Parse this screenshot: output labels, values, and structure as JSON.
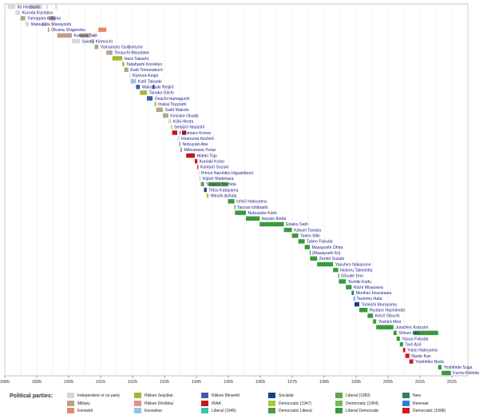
{
  "chart_data": {
    "type": "bar",
    "subtype": "timeline",
    "xlim": [
      1885,
      2030
    ],
    "x_ticks": [
      "1885",
      "1895",
      "1905",
      "1915",
      "1925",
      "1935",
      "1945",
      "1955",
      "1965",
      "1975",
      "1985",
      "1995",
      "2005",
      "2015",
      "2025"
    ],
    "grid": true,
    "series": [
      {
        "label": "Itō Hirobumi",
        "party": "independent",
        "terms": [
          [
            1885.9,
            1888.3
          ],
          [
            1892.6,
            1896.7
          ],
          [
            1898.0,
            1898.5
          ],
          [
            1900.8,
            1901.4
          ]
        ]
      },
      {
        "label": "Kuroda Kiyotaka",
        "party": "independent",
        "terms": [
          [
            1888.3,
            1889.8
          ]
        ]
      },
      {
        "label": "Yamagata Aritomo",
        "party": "military",
        "terms": [
          [
            1889.9,
            1891.4
          ],
          [
            1898.9,
            1900.8
          ]
        ]
      },
      {
        "label": "Matsukata Masayoshi",
        "party": "independent",
        "terms": [
          [
            1891.4,
            1892.6
          ],
          [
            1896.7,
            1898.0
          ]
        ]
      },
      {
        "label": "Ōkuma Shigenobu",
        "party": "kenseito",
        "terms": [
          [
            1898.5,
            1898.9
          ],
          [
            1914.3,
            1916.8
          ]
        ]
      },
      {
        "label": "Katsura Tarō",
        "party": "military",
        "terms": [
          [
            1901.4,
            1906.0
          ],
          [
            1908.5,
            1911.7
          ],
          [
            1912.9,
            1913.1
          ]
        ]
      },
      {
        "label": "Saionji Kinmochi",
        "party": "independent",
        "terms": [
          [
            1906.0,
            1908.5
          ],
          [
            1911.7,
            1912.9
          ]
        ]
      },
      {
        "label": "Yamamoto Gonnohyōe",
        "party": "military",
        "terms": [
          [
            1913.1,
            1914.3
          ],
          [
            1923.7,
            1924.0
          ]
        ]
      },
      {
        "label": "Terauchi Masatake",
        "party": "military",
        "terms": [
          [
            1916.8,
            1918.7
          ]
        ]
      },
      {
        "label": "Hara Takashi",
        "party": "seiyukai",
        "terms": [
          [
            1918.7,
            1921.8
          ]
        ]
      },
      {
        "label": "Takahashi Korekiyo",
        "party": "seiyukai",
        "terms": [
          [
            1921.8,
            1922.4
          ]
        ]
      },
      {
        "label": "Katō Tomosaburō",
        "party": "military",
        "terms": [
          [
            1922.4,
            1923.7
          ]
        ]
      },
      {
        "label": "Kiyoura Keigo",
        "party": "independent",
        "terms": [
          [
            1924.0,
            1924.4
          ]
        ]
      },
      {
        "label": "Katō Takaaki",
        "party": "kenseikai",
        "terms": [
          [
            1924.4,
            1926.1
          ]
        ]
      },
      {
        "label": "Wakatsuki Reijirō",
        "party": "minseito",
        "terms": [
          [
            1926.1,
            1927.3
          ],
          [
            1931.3,
            1931.9
          ]
        ]
      },
      {
        "label": "Tanaka Giichi",
        "party": "seiyukai",
        "terms": [
          [
            1927.3,
            1929.5
          ]
        ]
      },
      {
        "label": "Osachi Hamaguchi",
        "party": "minseito",
        "terms": [
          [
            1929.5,
            1931.3
          ]
        ]
      },
      {
        "label": "Inukai Tsuyoshi",
        "party": "seiyukai",
        "terms": [
          [
            1931.9,
            1932.4
          ]
        ]
      },
      {
        "label": "Saitō Makoto",
        "party": "military",
        "terms": [
          [
            1932.4,
            1934.5
          ]
        ]
      },
      {
        "label": "Keisuke Okada",
        "party": "military",
        "terms": [
          [
            1934.5,
            1936.2
          ]
        ]
      },
      {
        "label": "Kōki Hirota",
        "party": "independent",
        "terms": [
          [
            1936.2,
            1937.1
          ]
        ]
      },
      {
        "label": "Senjūrō Hayashi",
        "party": "military",
        "terms": [
          [
            1937.1,
            1937.4
          ]
        ]
      },
      {
        "label": "Fumimaro Konoe",
        "party": "irAA",
        "terms": [
          [
            1937.4,
            1939.0
          ],
          [
            1940.5,
            1941.8
          ]
        ]
      },
      {
        "label": "Hiranuma Kiichirō",
        "party": "independent",
        "terms": [
          [
            1939.0,
            1939.6
          ]
        ]
      },
      {
        "label": "Nobuyuki Abe",
        "party": "military",
        "terms": [
          [
            1939.6,
            1940.0
          ]
        ]
      },
      {
        "label": "Mitsumasa Yonai",
        "party": "military",
        "terms": [
          [
            1940.0,
            1940.5
          ]
        ]
      },
      {
        "label": "Hideki Tojo",
        "party": "irAA",
        "terms": [
          [
            1941.8,
            1944.5
          ]
        ]
      },
      {
        "label": "Kuniaki Koiso",
        "party": "irAA",
        "terms": [
          [
            1944.5,
            1945.3
          ]
        ]
      },
      {
        "label": "Kantarō Suzuki",
        "party": "irAA",
        "terms": [
          [
            1945.3,
            1945.6
          ]
        ]
      },
      {
        "label": "Prince Naruhiko Higashikuni",
        "party": "independent",
        "terms": [
          [
            1945.6,
            1945.8
          ]
        ]
      },
      {
        "label": "Kijūrō Shidehara",
        "party": "independent",
        "terms": [
          [
            1945.8,
            1946.4
          ]
        ]
      },
      {
        "label": "Shigeru Yoshida",
        "party": "liberal1950",
        "terms": [
          [
            1946.4,
            1947.4
          ],
          [
            1948.8,
            1954.9
          ]
        ]
      },
      {
        "label": "Tetsu Katayama",
        "party": "socialist",
        "terms": [
          [
            1947.4,
            1948.2
          ]
        ]
      },
      {
        "label": "Hitoshi Ashida",
        "party": "democratic1947",
        "terms": [
          [
            1948.2,
            1948.8
          ]
        ]
      },
      {
        "label": "Ichirō Hatoyama",
        "party": "ldp",
        "terms": [
          [
            1954.9,
            1956.9
          ]
        ]
      },
      {
        "label": "Tanzan Ishibashi",
        "party": "ldp",
        "terms": [
          [
            1956.9,
            1957.1
          ]
        ]
      },
      {
        "label": "Nobusuke Kishi",
        "party": "ldp",
        "terms": [
          [
            1957.1,
            1960.5
          ]
        ]
      },
      {
        "label": "Hayato Ikeda",
        "party": "ldp",
        "terms": [
          [
            1960.5,
            1964.8
          ]
        ]
      },
      {
        "label": "Eisaku Satō",
        "party": "ldp",
        "terms": [
          [
            1964.8,
            1972.4
          ]
        ]
      },
      {
        "label": "Kakuei Tanaka",
        "party": "ldp",
        "terms": [
          [
            1972.4,
            1974.9
          ]
        ]
      },
      {
        "label": "Takeo Miki",
        "party": "ldp",
        "terms": [
          [
            1974.9,
            1976.9
          ]
        ]
      },
      {
        "label": "Takeo Fukuda",
        "party": "ldp",
        "terms": [
          [
            1976.9,
            1978.9
          ]
        ]
      },
      {
        "label": "Masayoshi Ōhira",
        "party": "ldp",
        "terms": [
          [
            1978.9,
            1980.5
          ]
        ]
      },
      {
        "label": "(Masayoshi Ito)",
        "party": "ldp",
        "terms": [
          [
            1980.5,
            1980.6
          ]
        ]
      },
      {
        "label": "Zenkō Suzuki",
        "party": "ldp",
        "terms": [
          [
            1980.6,
            1982.8
          ]
        ]
      },
      {
        "label": "Yasuhiro Nakasone",
        "party": "ldp",
        "terms": [
          [
            1982.8,
            1987.8
          ]
        ]
      },
      {
        "label": "Noboru Takeshita",
        "party": "ldp",
        "terms": [
          [
            1987.8,
            1989.4
          ]
        ]
      },
      {
        "label": "Sōsuke Uno",
        "party": "ldp",
        "terms": [
          [
            1989.4,
            1989.6
          ]
        ]
      },
      {
        "label": "Toshiki Kaifu",
        "party": "ldp",
        "terms": [
          [
            1989.6,
            1991.8
          ]
        ]
      },
      {
        "label": "Kiichi Miyazawa",
        "party": "ldp",
        "terms": [
          [
            1991.8,
            1993.6
          ]
        ]
      },
      {
        "label": "Morihiro Hosokawa",
        "party": "new",
        "terms": [
          [
            1993.6,
            1994.3
          ]
        ]
      },
      {
        "label": "Tsutomu Hata",
        "party": "renewal",
        "terms": [
          [
            1994.3,
            1994.5
          ]
        ]
      },
      {
        "label": "Tomiichi Murayama",
        "party": "socialist",
        "terms": [
          [
            1994.5,
            1996.0
          ]
        ]
      },
      {
        "label": "Ryutaro Hashimoto",
        "party": "ldp",
        "terms": [
          [
            1996.0,
            1998.6
          ]
        ]
      },
      {
        "label": "Keizō Obuchi",
        "party": "ldp",
        "terms": [
          [
            1998.6,
            2000.3
          ]
        ]
      },
      {
        "label": "Yoshirō Mori",
        "party": "ldp",
        "terms": [
          [
            2000.3,
            2001.3
          ]
        ]
      },
      {
        "label": "Junichiro Koizumi",
        "party": "ldp",
        "terms": [
          [
            2001.3,
            2006.7
          ]
        ]
      },
      {
        "label": "Shinzo Abe",
        "party": "ldp",
        "terms": [
          [
            2006.7,
            2007.7
          ],
          [
            2012.9,
            2020.7
          ]
        ]
      },
      {
        "label": "Yasuo Fukuda",
        "party": "ldp",
        "terms": [
          [
            2007.7,
            2008.7
          ]
        ]
      },
      {
        "label": "Tarō Asō",
        "party": "ldp",
        "terms": [
          [
            2008.7,
            2009.7
          ]
        ]
      },
      {
        "label": "Yukio Hatoyama",
        "party": "democratic1998",
        "terms": [
          [
            2009.7,
            2010.4
          ]
        ]
      },
      {
        "label": "Naoto Kan",
        "party": "democratic1998",
        "terms": [
          [
            2010.4,
            2011.7
          ]
        ]
      },
      {
        "label": "Yoshihiko Noda",
        "party": "democratic1998",
        "terms": [
          [
            2011.7,
            2012.9
          ]
        ]
      },
      {
        "label": "Yoshihide Suga",
        "party": "ldp",
        "terms": [
          [
            2020.7,
            2021.8
          ]
        ]
      },
      {
        "label": "Fumio Kishida",
        "party": "ldp",
        "terms": [
          [
            2021.8,
            2024.7
          ]
        ]
      }
    ],
    "legend": {
      "title": "Political parties:",
      "placement": "bottom",
      "entries": [
        {
          "key": "independent",
          "label": "Independent or no party"
        },
        {
          "key": "military",
          "label": "Military"
        },
        {
          "key": "kenseito",
          "label": "Kenseitō"
        },
        {
          "key": "seiyukai",
          "label": "Rikken Seiyūkai"
        },
        {
          "key": "doshikai",
          "label": "Rikken Dōshikai"
        },
        {
          "key": "kenseikai",
          "label": "Kenseikai"
        },
        {
          "key": "minseito",
          "label": "Rikken Minseitō"
        },
        {
          "key": "irAA",
          "label": "IRAA"
        },
        {
          "key": "liberal1945",
          "label": "Liberal (1945)"
        },
        {
          "key": "socialist",
          "label": "Socialist"
        },
        {
          "key": "democratic1947",
          "label": "Democratic (1947)"
        },
        {
          "key": "democraticLiberal",
          "label": "Democratic Liberal"
        },
        {
          "key": "liberal1950",
          "label": "Liberal (1950)"
        },
        {
          "key": "democratic1954",
          "label": "Democratic (1954)"
        },
        {
          "key": "ldp",
          "label": "Liberal Democratic"
        },
        {
          "key": "new",
          "label": "New"
        },
        {
          "key": "renewal",
          "label": "Renewal"
        },
        {
          "key": "democratic1998",
          "label": "Democratic (1998)"
        }
      ]
    },
    "colors": {
      "independent": "#d8d8d8",
      "military": "#b7a38b",
      "kenseito": "#e8876b",
      "seiyukai": "#a6b72d",
      "doshikai": "#e0918f",
      "kenseikai": "#8fc6e6",
      "minseito": "#3f5fa8",
      "irAA": "#c5161d",
      "liberal1945": "#3fbfae",
      "socialist": "#1b3d8f",
      "democratic1947": "#a7c73b",
      "democraticLiberal": "#4b9a3f",
      "liberal1950": "#5aa847",
      "democratic1954": "#7ab84f",
      "ldp": "#3a9a3a",
      "new": "#2e7d6a",
      "renewal": "#2e7fd6",
      "democratic1998": "#d7191c",
      "label_text": "#1a1a8c",
      "grid": "#dcdcdc"
    }
  }
}
